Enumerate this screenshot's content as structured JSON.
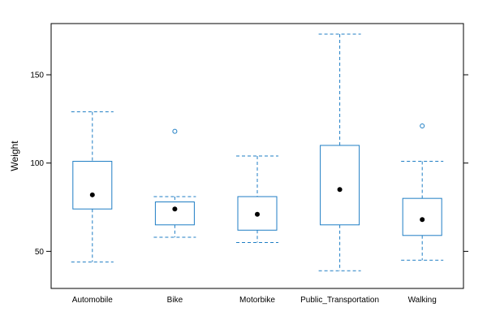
{
  "chart_data": {
    "type": "boxplot",
    "title": "",
    "xlabel": "",
    "ylabel": "Weight",
    "ylim": [
      29,
      179
    ],
    "yticks": [
      50,
      100,
      150
    ],
    "grid": false,
    "categories": [
      "Automobile",
      "Bike",
      "Motorbike",
      "Public_Transportation",
      "Walking"
    ],
    "boxes": [
      {
        "category": "Automobile",
        "whisker_low": 44,
        "q1": 74,
        "mean": 82,
        "q3": 101,
        "whisker_high": 129,
        "outliers": []
      },
      {
        "category": "Bike",
        "whisker_low": 58,
        "q1": 65,
        "mean": 74,
        "q3": 78,
        "whisker_high": 81,
        "outliers": [
          118
        ]
      },
      {
        "category": "Motorbike",
        "whisker_low": 55,
        "q1": 62,
        "mean": 71,
        "q3": 81,
        "whisker_high": 104,
        "outliers": []
      },
      {
        "category": "Public_Transportation",
        "whisker_low": 39,
        "q1": 65,
        "mean": 85,
        "q3": 110,
        "whisker_high": 173,
        "outliers": []
      },
      {
        "category": "Walking",
        "whisker_low": 45,
        "q1": 59,
        "mean": 68,
        "q3": 80,
        "whisker_high": 101,
        "outliers": [
          121
        ]
      }
    ],
    "colors": {
      "box": "#1f7ec4",
      "mean": "#000000",
      "frame": "#000000"
    }
  }
}
